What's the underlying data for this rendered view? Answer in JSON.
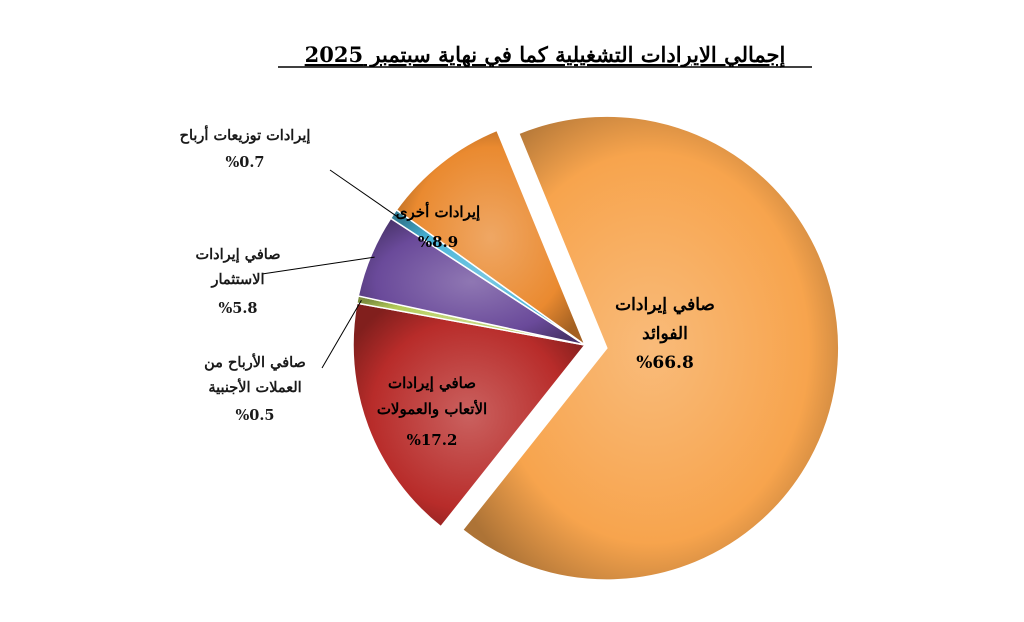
{
  "chart_data": {
    "type": "pie",
    "title": "إجمالي الايرادات التشغيلية كما في نهاية سبتمبر 2025",
    "slices": [
      {
        "label": "صافي إيرادات الفوائد",
        "value": 66.8,
        "value_text": "%66.8",
        "color": "#f7a44d",
        "exploded": true
      },
      {
        "label": "صافي إيرادات الأتعاب والعمولات",
        "value": 17.2,
        "value_text": "%17.2",
        "color": "#b82c2a"
      },
      {
        "label": "صافي الأرباح من العملات الأجنبية",
        "value": 0.5,
        "value_text": "%0.5",
        "color": "#b4cc5a"
      },
      {
        "label": "صافي إيرادات الاستثمار",
        "value": 5.8,
        "value_text": "%5.8",
        "color": "#6a4a9a"
      },
      {
        "label": "إيرادات توزيعات أرباح",
        "value": 0.7,
        "value_text": "%0.7",
        "color": "#48b4d8"
      },
      {
        "label": "إيرادات أخرى",
        "value": 8.9,
        "value_text": "%8.9",
        "color": "#ea8a30"
      }
    ],
    "legend": "none"
  }
}
